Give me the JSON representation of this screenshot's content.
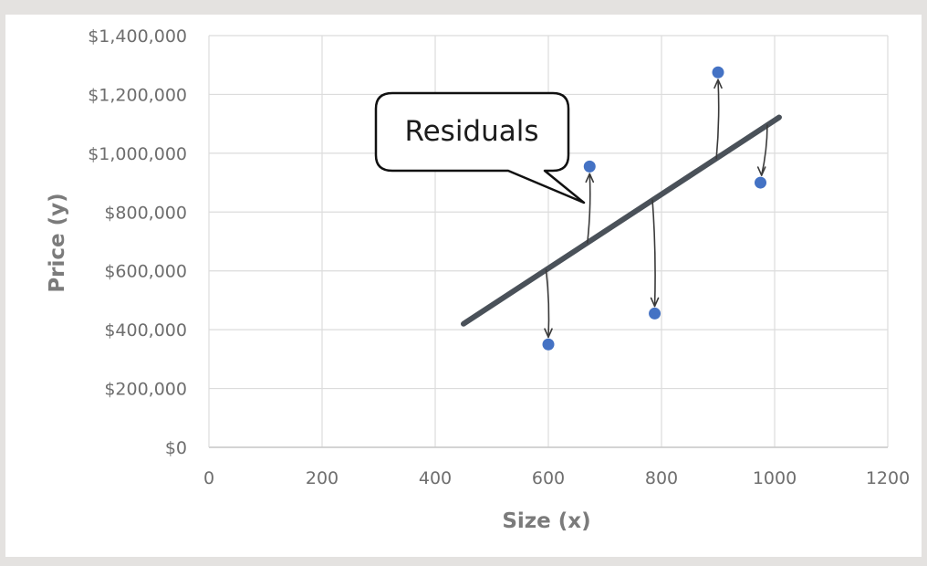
{
  "chart_data": {
    "type": "scatter",
    "title": "",
    "xlabel": "Size (x)",
    "ylabel": "Price (y)",
    "xlim": [
      0,
      1200
    ],
    "ylim": [
      0,
      1400000
    ],
    "x_ticks": [
      0,
      200,
      400,
      600,
      800,
      1000,
      1200
    ],
    "y_ticks": [
      0,
      200000,
      400000,
      600000,
      800000,
      1000000,
      1200000,
      1400000
    ],
    "x_tick_labels": [
      "0",
      "200",
      "400",
      "600",
      "800",
      "1000",
      "1200"
    ],
    "y_tick_labels": [
      "$0",
      "$200,000",
      "$400,000",
      "$600,000",
      "$800,000",
      "$1,000,000",
      "$1,200,000",
      "$1,400,000"
    ],
    "grid": true,
    "series": [
      {
        "points": [
          {
            "x": 600,
            "y": 350000
          },
          {
            "x": 673,
            "y": 955000
          },
          {
            "x": 788,
            "y": 455000
          },
          {
            "x": 900,
            "y": 1275000
          },
          {
            "x": 975,
            "y": 900000
          }
        ],
        "color": "#4472c4"
      }
    ],
    "regression_line": {
      "x_start": 450,
      "y_start": 420000,
      "x_end": 1008,
      "y_end": 1122000,
      "color": "#4a5159"
    },
    "annotations": [
      {
        "text": "Residuals"
      }
    ]
  }
}
